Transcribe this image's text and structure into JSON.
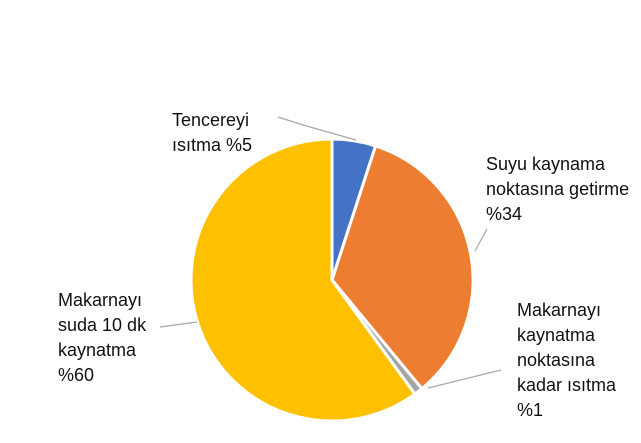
{
  "chart_data": {
    "type": "pie",
    "title": "",
    "legend": "none",
    "slices": [
      {
        "label": "Tencereyi\nısıtma %5",
        "value": 5,
        "color": "#4472C4"
      },
      {
        "label": "Suyu kaynama\nnoktasına getirme\n%34",
        "value": 34,
        "color": "#ED7D31"
      },
      {
        "label": "Makarnayı\nkaynatma\nnoktasına\nkadar ısıtma\n%1",
        "value": 1,
        "color": "#A5A5A5"
      },
      {
        "label": "Makarnayı\nsuda 10 dk\nkaynatma\n%60",
        "value": 60,
        "color": "#FFC000"
      }
    ]
  }
}
